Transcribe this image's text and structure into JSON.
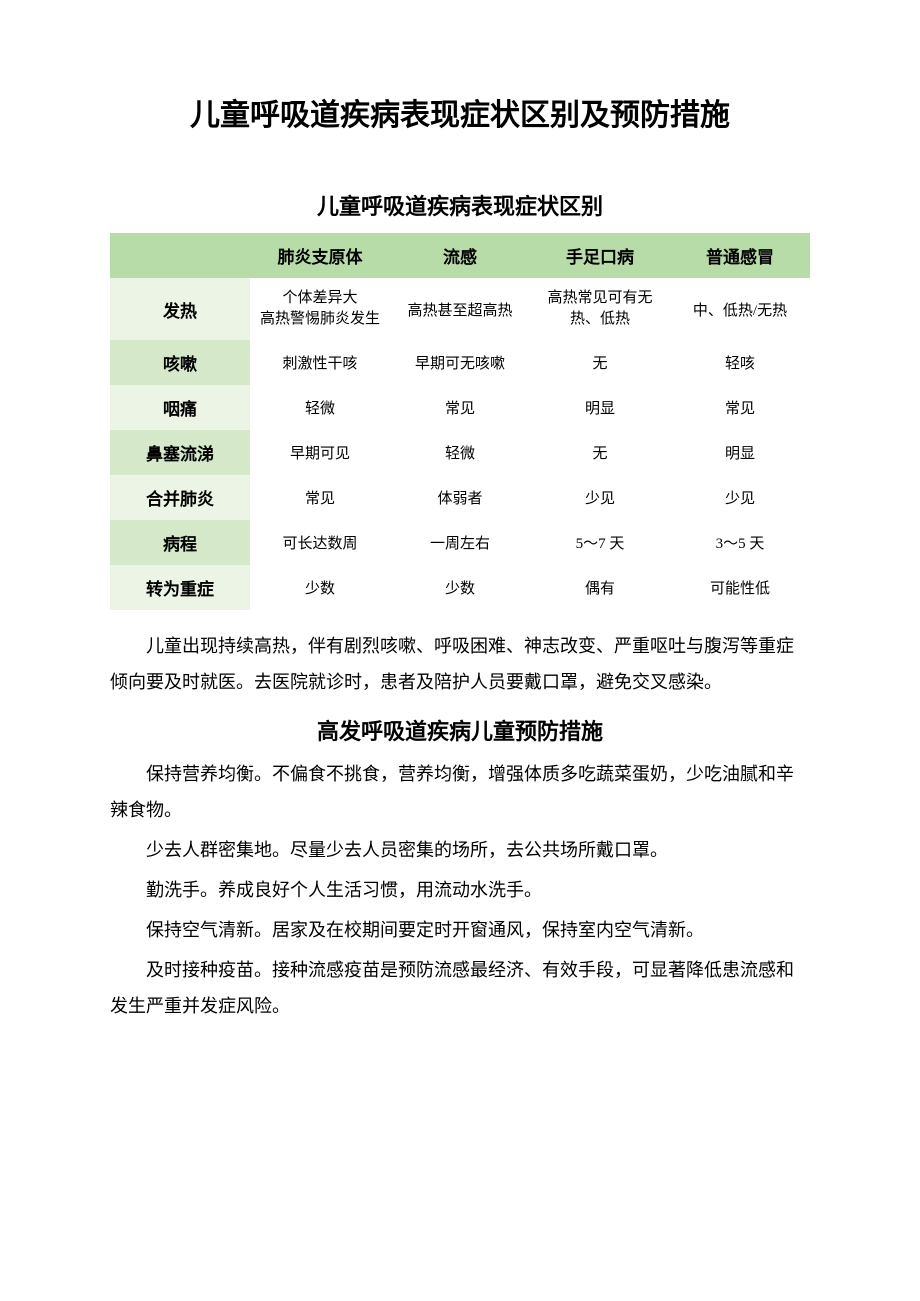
{
  "main_title": "儿童呼吸道疾病表现症状区别及预防措施",
  "table_section": {
    "title": "儿童呼吸道疾病表现症状区别",
    "columns": [
      "",
      "肺炎支原体",
      "流感",
      "手足口病",
      "普通感冒"
    ],
    "rows": [
      {
        "label": "发热",
        "cells": [
          "个体差异大\n高热警惕肺炎发生",
          "高热甚至超高热",
          "高热常见可有无热、低热",
          "中、低热/无热"
        ]
      },
      {
        "label": "咳嗽",
        "cells": [
          "刺激性干咳",
          "早期可无咳嗽",
          "无",
          "轻咳"
        ]
      },
      {
        "label": "咽痛",
        "cells": [
          "轻微",
          "常见",
          "明显",
          "常见"
        ]
      },
      {
        "label": "鼻塞流涕",
        "cells": [
          "早期可见",
          "轻微",
          "无",
          "明显"
        ]
      },
      {
        "label": "合并肺炎",
        "cells": [
          "常见",
          "体弱者",
          "少见",
          "少见"
        ]
      },
      {
        "label": "病程",
        "cells": [
          "可长达数周",
          "一周左右",
          "5～7 天",
          "3～5 天"
        ]
      },
      {
        "label": "转为重症",
        "cells": [
          "少数",
          "少数",
          "偶有",
          "可能性低"
        ]
      }
    ],
    "header_bg": "#b8dca8",
    "row_light_bg": "#ecf4e6",
    "row_dark_bg": "#d5e8ca"
  },
  "note_paragraph": "儿童出现持续高热，伴有剧烈咳嗽、呼吸困难、神志改变、严重呕吐与腹泻等重症倾向要及时就医。去医院就诊时，患者及陪护人员要戴口罩，避免交叉感染。",
  "prevention_section": {
    "title": "高发呼吸道疾病儿童预防措施",
    "paragraphs": [
      "保持营养均衡。不偏食不挑食，营养均衡，增强体质多吃蔬菜蛋奶，少吃油腻和辛辣食物。",
      "少去人群密集地。尽量少去人员密集的场所，去公共场所戴口罩。",
      "勤洗手。养成良好个人生活习惯，用流动水洗手。",
      "保持空气清新。居家及在校期间要定时开窗通风，保持室内空气清新。",
      "及时接种疫苗。接种流感疫苗是预防流感最经济、有效手段，可显著降低患流感和发生严重并发症风险。"
    ]
  }
}
